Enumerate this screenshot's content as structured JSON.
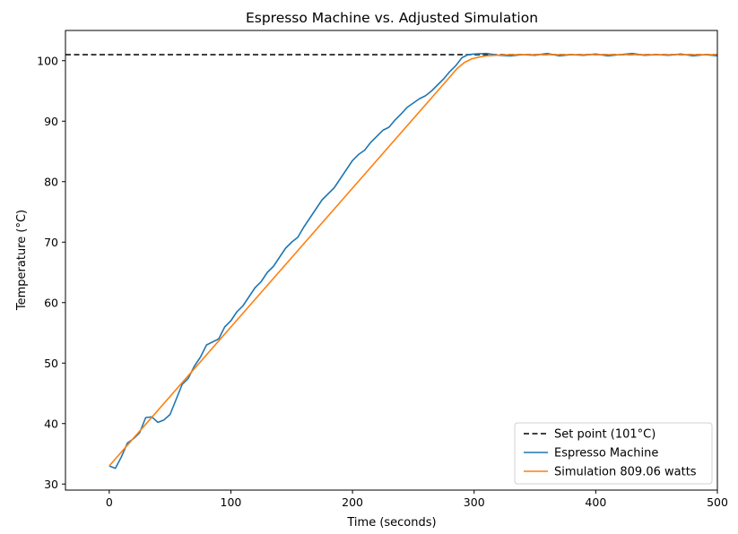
{
  "chart_data": {
    "type": "line",
    "title": "Espresso Machine vs. Adjusted Simulation",
    "xlabel": "Time (seconds)",
    "ylabel": "Temperature (°C)",
    "xlim": [
      -36,
      500
    ],
    "ylim": [
      29,
      105
    ],
    "xticks": [
      0,
      100,
      200,
      300,
      400,
      500
    ],
    "yticks": [
      30,
      40,
      50,
      60,
      70,
      80,
      90,
      100
    ],
    "grid": false,
    "legend_position": "lower-right",
    "setpoint": {
      "name": "Set point (101°C)",
      "value": 101,
      "color": "#000000",
      "style": "dashed"
    },
    "series": [
      {
        "name": "Espresso Machine",
        "color": "#1f77b4",
        "x": [
          0,
          5,
          10,
          15,
          20,
          25,
          30,
          35,
          40,
          45,
          50,
          55,
          60,
          65,
          70,
          75,
          80,
          85,
          90,
          95,
          100,
          105,
          110,
          115,
          120,
          125,
          130,
          135,
          140,
          145,
          150,
          155,
          160,
          165,
          170,
          175,
          180,
          185,
          190,
          195,
          200,
          205,
          210,
          215,
          220,
          225,
          230,
          235,
          240,
          245,
          250,
          255,
          260,
          265,
          270,
          275,
          280,
          285,
          290,
          295,
          300,
          310,
          320,
          330,
          340,
          350,
          360,
          370,
          380,
          390,
          400,
          410,
          420,
          430,
          440,
          450,
          460,
          470,
          480,
          490,
          500
        ],
        "y": [
          33,
          32.6,
          34.5,
          36.8,
          37.5,
          38.5,
          41,
          41.1,
          40.2,
          40.6,
          41.5,
          44,
          46.5,
          47.5,
          49.5,
          51,
          53,
          53.5,
          54,
          56,
          57,
          58.5,
          59.5,
          61,
          62.5,
          63.5,
          65,
          66,
          67.5,
          69,
          70,
          70.8,
          72.5,
          74,
          75.5,
          77,
          78,
          79,
          80.5,
          82,
          83.5,
          84.5,
          85.2,
          86.5,
          87.5,
          88.5,
          89,
          90.2,
          91.2,
          92.3,
          93,
          93.7,
          94.2,
          95,
          96,
          97,
          98.2,
          99.2,
          100.5,
          101,
          101.1,
          101.2,
          100.9,
          100.8,
          101,
          100.9,
          101.2,
          100.8,
          101,
          100.9,
          101.1,
          100.8,
          101,
          101.2,
          100.9,
          101,
          100.9,
          101.1,
          100.8,
          101,
          100.8
        ]
      },
      {
        "name": "Simulation 809.06 watts",
        "color": "#ff7f0e",
        "x": [
          0,
          280,
          286,
          292,
          298,
          304,
          310,
          318,
          330,
          350,
          500
        ],
        "y": [
          33,
          97.3,
          98.7,
          99.7,
          100.3,
          100.6,
          100.8,
          100.9,
          101,
          101,
          101
        ]
      }
    ]
  }
}
